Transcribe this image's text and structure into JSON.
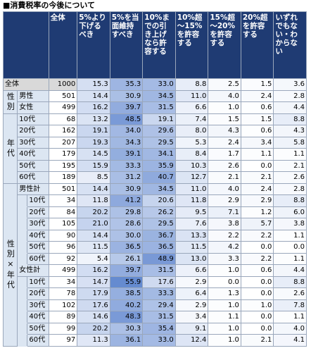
{
  "title": "■消費税率の今後について",
  "table": {
    "header": [
      "全体",
      "5%より下げるべき",
      "5%を当面維持すべき",
      "10%までの引き上げなら許容する",
      "10%超～15%を許容する",
      "15%超～20%を許容する",
      "20%超を許容する",
      "いずれでもない・わからない"
    ],
    "sections": [
      {
        "rows": [
          {
            "label": "全体",
            "cells": [
              "1000",
              "15.3",
              "35.3",
              "33.0",
              "8.8",
              "2.5",
              "1.5",
              "3.6"
            ]
          }
        ]
      },
      {
        "group": "性別",
        "rows": [
          {
            "label": "男性",
            "cells": [
              "501",
              "14.4",
              "30.9",
              "34.5",
              "11.0",
              "4.0",
              "2.4",
              "2.8"
            ]
          },
          {
            "label": "女性",
            "cells": [
              "499",
              "16.2",
              "39.7",
              "31.5",
              "6.6",
              "1.0",
              "0.6",
              "4.4"
            ]
          }
        ]
      },
      {
        "group": "年代",
        "rows": [
          {
            "label": "10代",
            "cells": [
              "68",
              "13.2",
              "48.5",
              "19.1",
              "7.4",
              "1.5",
              "1.5",
              "8.8"
            ]
          },
          {
            "label": "20代",
            "cells": [
              "162",
              "19.1",
              "34.0",
              "29.6",
              "8.0",
              "4.3",
              "0.6",
              "4.3"
            ]
          },
          {
            "label": "30代",
            "cells": [
              "207",
              "19.3",
              "34.3",
              "29.5",
              "5.3",
              "2.4",
              "3.4",
              "5.8"
            ]
          },
          {
            "label": "40代",
            "cells": [
              "179",
              "14.5",
              "39.1",
              "34.1",
              "8.4",
              "1.7",
              "1.1",
              "1.1"
            ]
          },
          {
            "label": "50代",
            "cells": [
              "195",
              "15.9",
              "33.3",
              "35.9",
              "10.3",
              "2.6",
              "0.0",
              "2.1"
            ]
          },
          {
            "label": "60代",
            "cells": [
              "189",
              "8.5",
              "31.2",
              "40.7",
              "12.7",
              "2.1",
              "2.1",
              "2.6"
            ]
          }
        ]
      },
      {
        "group": "性別×年代",
        "subsections": [
          {
            "label": "男性計",
            "cells": [
              "501",
              "14.4",
              "30.9",
              "34.5",
              "11.0",
              "4.0",
              "2.4",
              "2.8"
            ],
            "rows": [
              {
                "label": "10代",
                "cells": [
                  "34",
                  "11.8",
                  "41.2",
                  "20.6",
                  "11.8",
                  "2.9",
                  "2.9",
                  "8.8"
                ]
              },
              {
                "label": "20代",
                "cells": [
                  "84",
                  "20.2",
                  "29.8",
                  "26.2",
                  "9.5",
                  "7.1",
                  "1.2",
                  "6.0"
                ]
              },
              {
                "label": "30代",
                "cells": [
                  "105",
                  "21.0",
                  "28.6",
                  "29.5",
                  "7.6",
                  "3.8",
                  "5.7",
                  "3.8"
                ]
              },
              {
                "label": "40代",
                "cells": [
                  "90",
                  "14.4",
                  "30.0",
                  "36.7",
                  "13.3",
                  "2.2",
                  "2.2",
                  "1.1"
                ]
              },
              {
                "label": "50代",
                "cells": [
                  "96",
                  "11.5",
                  "36.5",
                  "36.5",
                  "11.5",
                  "4.2",
                  "0.0",
                  "0.0"
                ]
              },
              {
                "label": "60代",
                "cells": [
                  "92",
                  "5.4",
                  "26.1",
                  "48.9",
                  "13.0",
                  "3.3",
                  "2.2",
                  "1.1"
                ]
              }
            ]
          },
          {
            "label": "女性計",
            "cells": [
              "499",
              "16.2",
              "39.7",
              "31.5",
              "6.6",
              "1.0",
              "0.6",
              "4.4"
            ],
            "rows": [
              {
                "label": "10代",
                "cells": [
                  "34",
                  "14.7",
                  "55.9",
                  "17.6",
                  "2.9",
                  "0.0",
                  "0.0",
                  "8.8"
                ]
              },
              {
                "label": "20代",
                "cells": [
                  "78",
                  "17.9",
                  "38.5",
                  "33.3",
                  "6.4",
                  "1.3",
                  "0.0",
                  "2.6"
                ]
              },
              {
                "label": "30代",
                "cells": [
                  "102",
                  "17.6",
                  "40.2",
                  "29.4",
                  "2.9",
                  "1.0",
                  "1.0",
                  "7.8"
                ]
              },
              {
                "label": "40代",
                "cells": [
                  "89",
                  "14.6",
                  "48.3",
                  "31.5",
                  "3.4",
                  "1.1",
                  "0.0",
                  "1.1"
                ]
              },
              {
                "label": "50代",
                "cells": [
                  "99",
                  "20.2",
                  "30.3",
                  "35.4",
                  "9.1",
                  "1.0",
                  "0.0",
                  "4.0"
                ]
              },
              {
                "label": "60代",
                "cells": [
                  "97",
                  "11.3",
                  "36.1",
                  "33.0",
                  "12.4",
                  "1.0",
                  "2.1",
                  "4.1"
                ]
              }
            ]
          }
        ]
      }
    ]
  }
}
